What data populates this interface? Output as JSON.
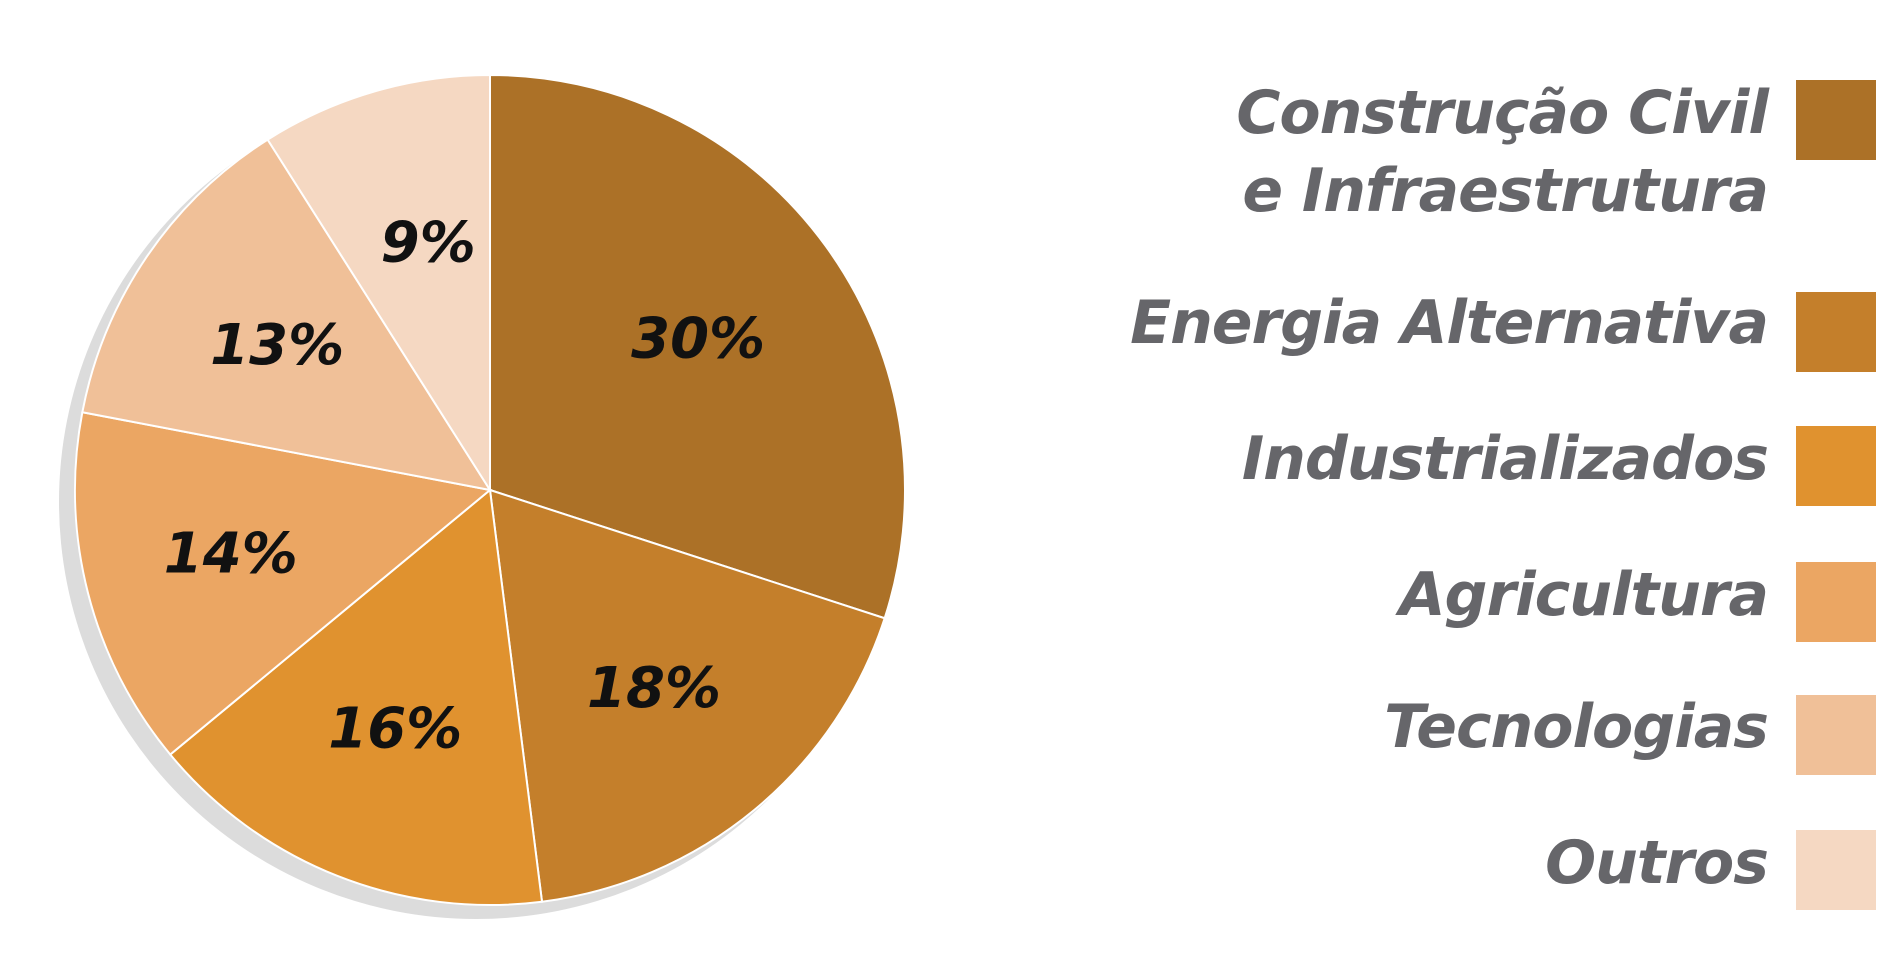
{
  "chart_data": {
    "type": "pie",
    "slices": [
      {
        "label_lines": [
          "Construção Civil",
          "e Infraestrutura"
        ],
        "value": 30,
        "text": "30%",
        "color": "#ac7127"
      },
      {
        "label_lines": [
          "Energia Alternativa"
        ],
        "value": 18,
        "text": "18%",
        "color": "#c47f2b"
      },
      {
        "label_lines": [
          "Industrializados"
        ],
        "value": 16,
        "text": "16%",
        "color": "#e0922f"
      },
      {
        "label_lines": [
          "Agricultura"
        ],
        "value": 14,
        "text": "14%",
        "color": "#eba663"
      },
      {
        "label_lines": [
          "Tecnologias"
        ],
        "value": 13,
        "text": "13%",
        "color": "#f0c098"
      },
      {
        "label_lines": [
          "Outros"
        ],
        "value": 9,
        "text": "9%",
        "color": "#f5d8c2"
      }
    ],
    "legend_position": "right",
    "text_color": "#66666a",
    "label_color": "#111111",
    "shadow_color": "#dcdcdc"
  }
}
